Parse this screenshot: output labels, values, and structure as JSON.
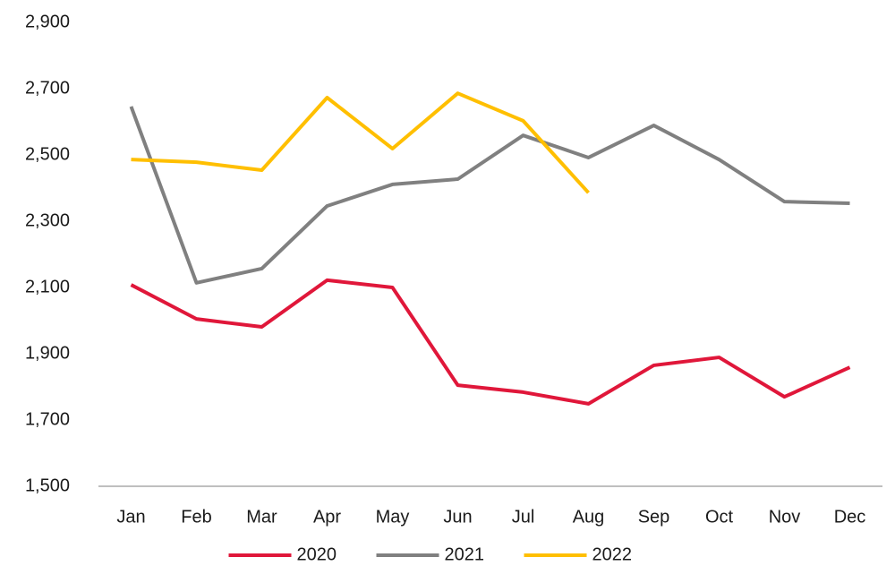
{
  "chart_data": {
    "type": "line",
    "categories": [
      "Jan",
      "Feb",
      "Mar",
      "Apr",
      "May",
      "Jun",
      "Jul",
      "Aug",
      "Sep",
      "Oct",
      "Nov",
      "Dec"
    ],
    "series": [
      {
        "name": "2020",
        "color": "#e0173a",
        "values": [
          2108,
          2005,
          1981,
          2122,
          2100,
          1805,
          1784,
          1749,
          1865,
          1889,
          1770,
          1859
        ]
      },
      {
        "name": "2021",
        "color": "#808080",
        "values": [
          2646,
          2114,
          2157,
          2346,
          2411,
          2427,
          2559,
          2492,
          2589,
          2486,
          2359,
          2354
        ]
      },
      {
        "name": "2022",
        "color": "#ffbf00",
        "values": [
          2486,
          2478,
          2454,
          2673,
          2519,
          2686,
          2603,
          2386,
          null,
          null,
          null,
          null
        ]
      }
    ],
    "ylim": [
      1500,
      2900
    ],
    "yticks": [
      {
        "value": 1500,
        "label": "1,500"
      },
      {
        "value": 1700,
        "label": "1,700"
      },
      {
        "value": 1900,
        "label": "1,900"
      },
      {
        "value": 2100,
        "label": "2,100"
      },
      {
        "value": 2300,
        "label": "2,300"
      },
      {
        "value": 2500,
        "label": "2,500"
      },
      {
        "value": 2700,
        "label": "2,700"
      },
      {
        "value": 2900,
        "label": "2,900"
      }
    ],
    "grid": false,
    "legend": "bottom"
  }
}
